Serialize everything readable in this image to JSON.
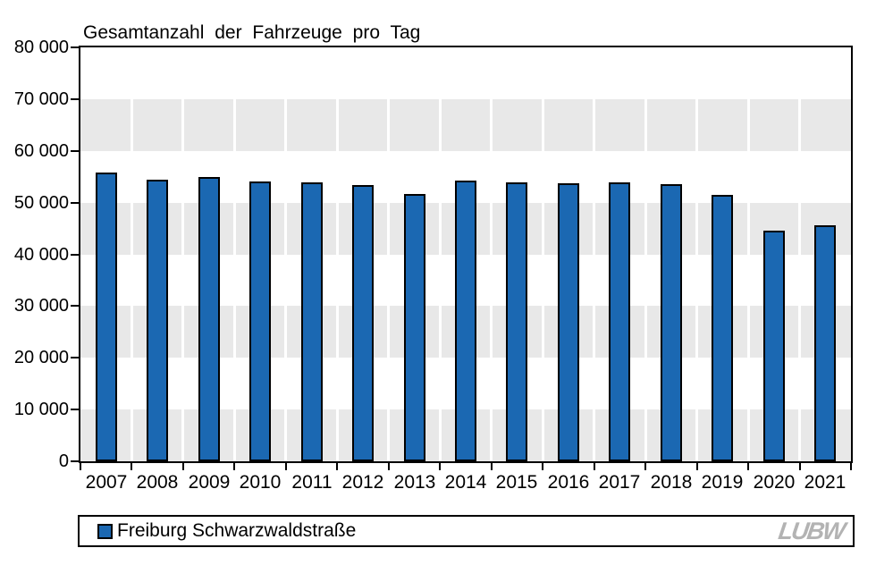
{
  "page": {
    "background": "#ffffff"
  },
  "chart_data": {
    "type": "bar",
    "title": "Gesamtanzahl der Fahrzeuge pro Tag",
    "categories": [
      "2007",
      "2008",
      "2009",
      "2010",
      "2011",
      "2012",
      "2013",
      "2014",
      "2015",
      "2016",
      "2017",
      "2018",
      "2019",
      "2020",
      "2021"
    ],
    "series": [
      {
        "name": "Freiburg Schwarzwaldstraße",
        "color": "#1b68b2",
        "values": [
          55800,
          54400,
          54900,
          54000,
          53900,
          53400,
          51600,
          54300,
          53900,
          53700,
          53900,
          53500,
          51500,
          44500,
          45600
        ]
      }
    ],
    "xlabel": "",
    "ylabel": "",
    "ylim": [
      0,
      80000
    ],
    "ytick_interval": 10000,
    "ytick_labels": [
      "0",
      "10 000",
      "20 000",
      "30 000",
      "40 000",
      "50 000",
      "60 000",
      "70 000",
      "80 000"
    ],
    "grid": "alternating horizontal gray bands (10000-step) with white vertical column separators",
    "band_color": "#e8e8e8",
    "legend_position": "bottom"
  },
  "legend": {
    "items": [
      {
        "label": "Freiburg Schwarzwaldstraße",
        "swatch_color": "#1b68b2"
      }
    ]
  },
  "branding": {
    "logo_text": "LUBW",
    "color": "#b3b3b3"
  }
}
